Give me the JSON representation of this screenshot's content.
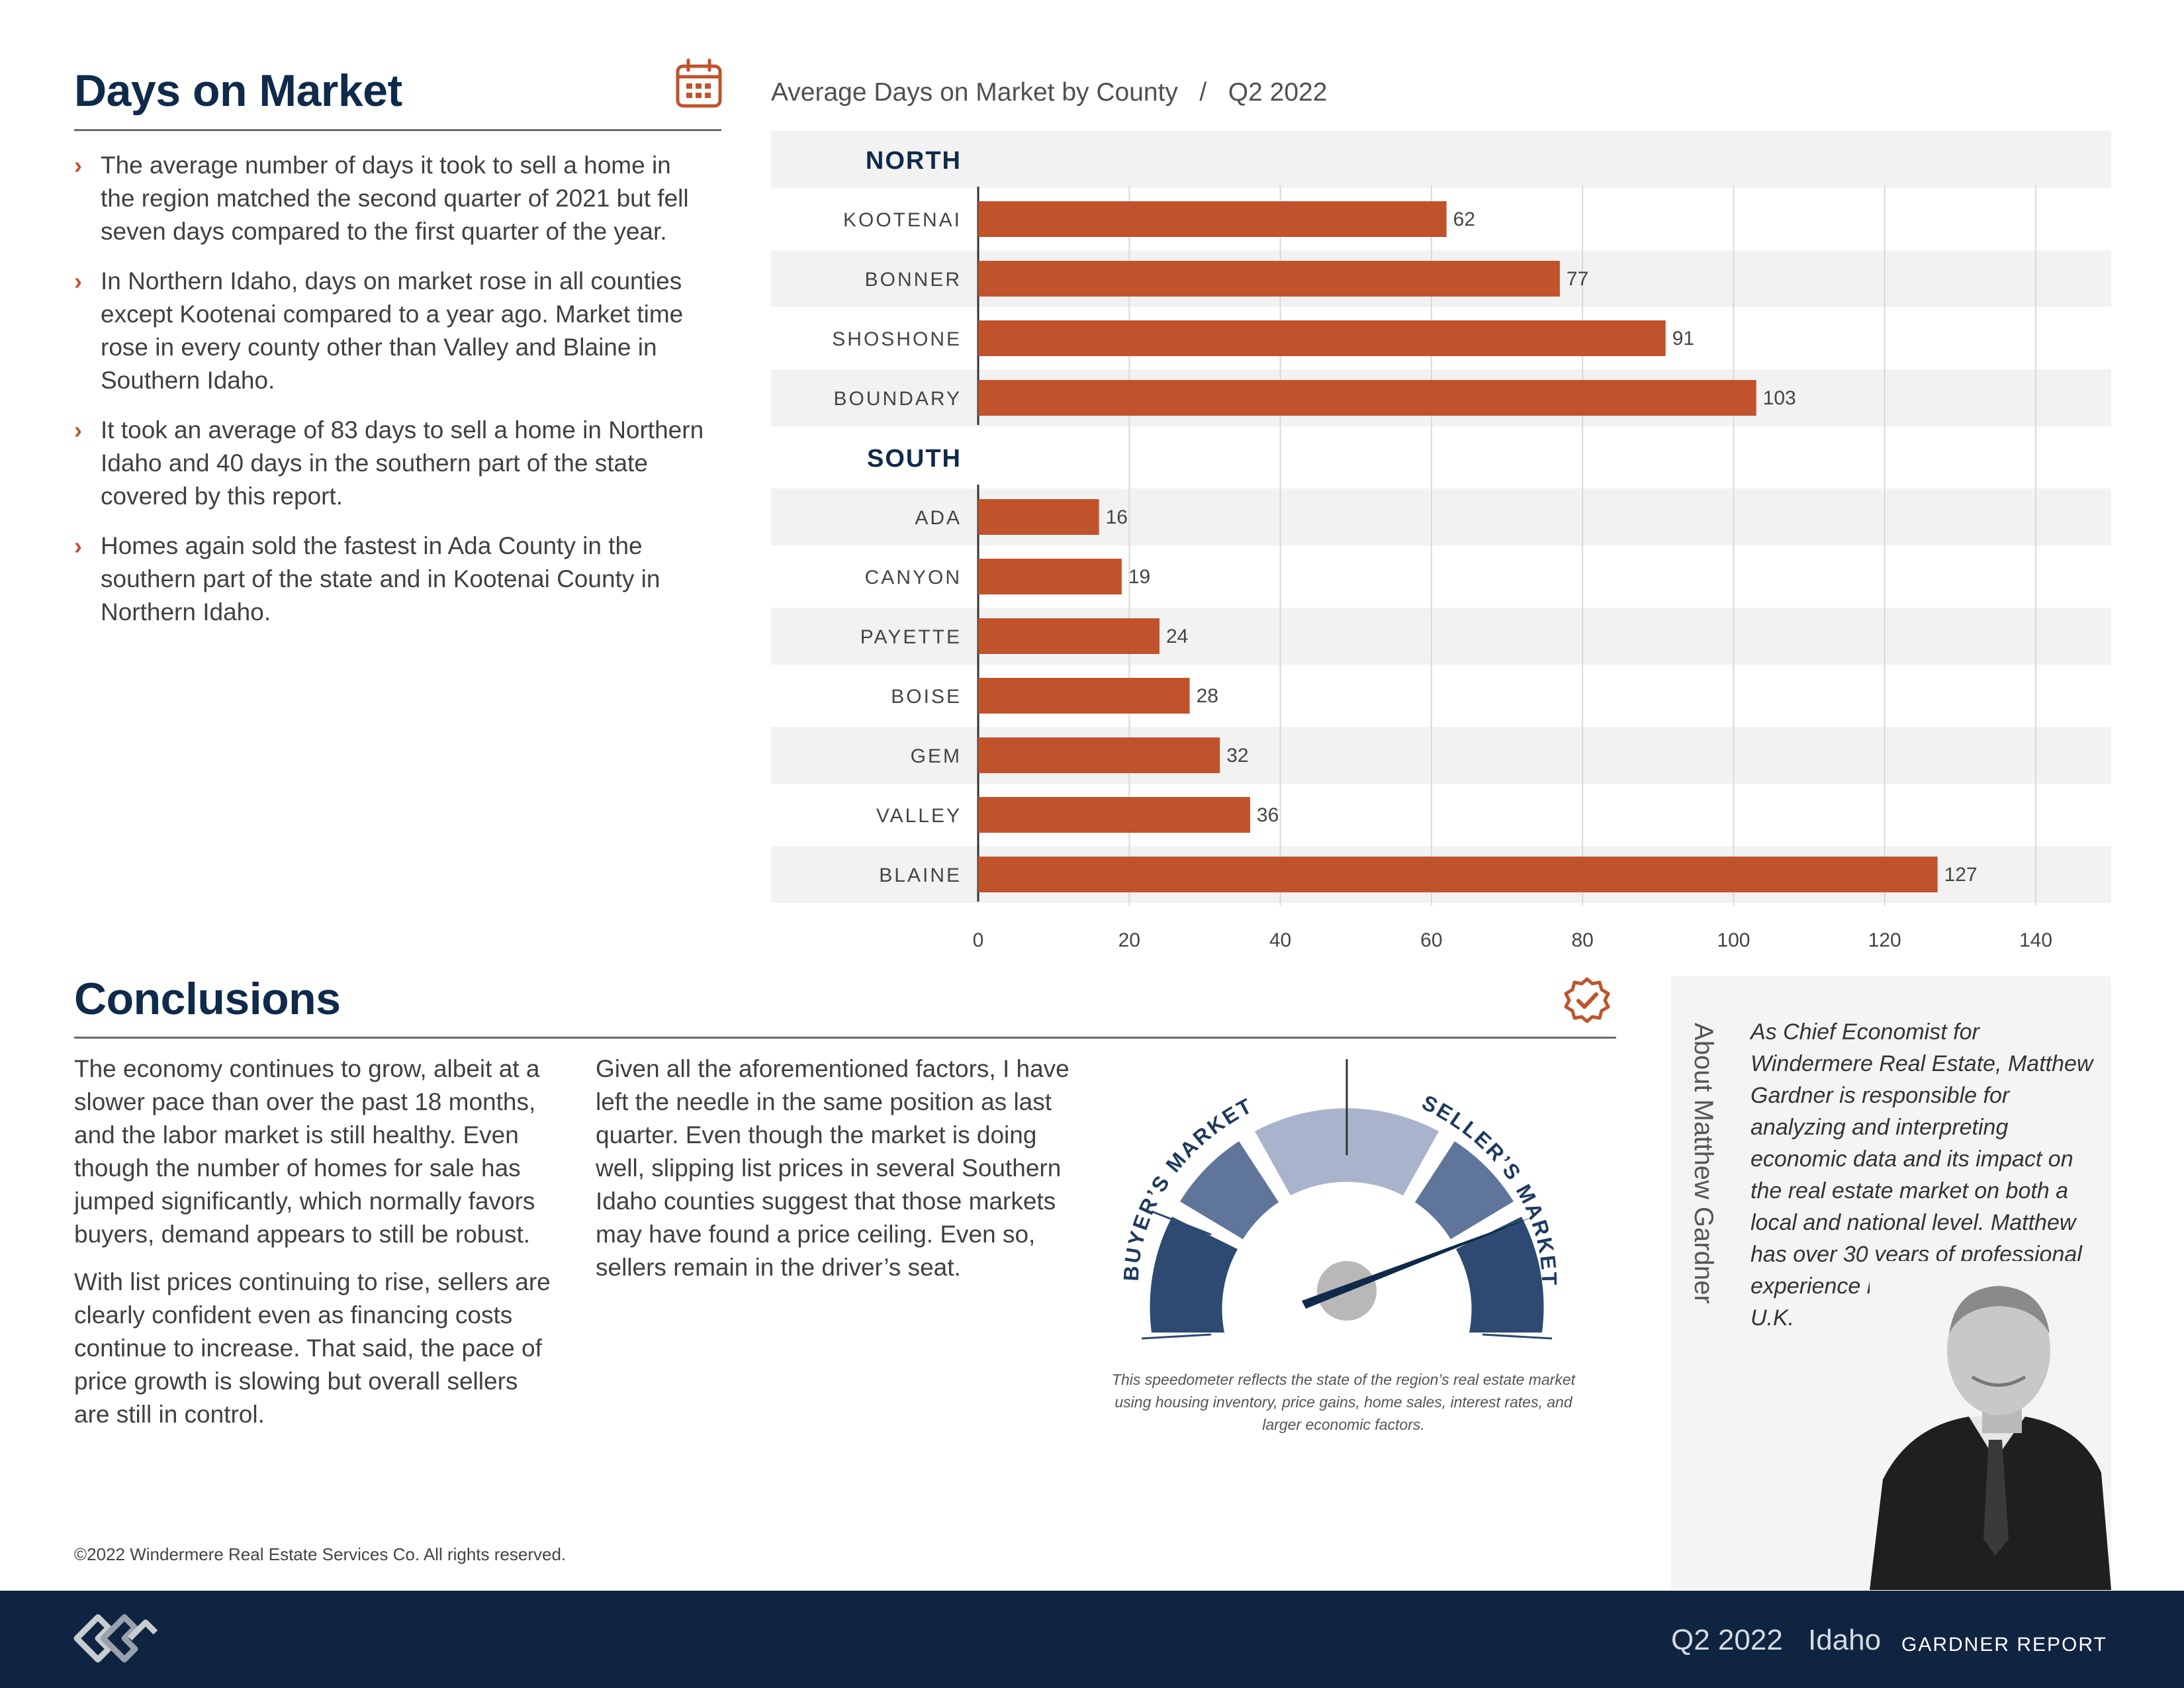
{
  "dom": {
    "title": "Days on Market",
    "bullets": [
      "The average number of days it took to sell a home in the region matched the second quarter of 2021 but fell seven days compared to the first quarter of the year.",
      "In Northern Idaho, days on market rose in all counties except Kootenai compared to a year ago. Market time rose in every county other than Valley and Blaine in Southern Idaho.",
      "It took an average of 83 days to sell a home in Northern Idaho and 40 days in the southern part of the state covered by this report.",
      "Homes again sold the fastest in Ada County in the southern part of the state and in Kootenai County in Northern Idaho."
    ]
  },
  "chart_data": {
    "type": "bar",
    "orientation": "horizontal",
    "title": "Average Days on Market by County   /   Q2 2022",
    "groups": [
      {
        "name": "NORTH",
        "categories": [
          "KOOTENAI",
          "BONNER",
          "SHOSHONE",
          "BOUNDARY"
        ],
        "values": [
          62,
          77,
          91,
          103
        ]
      },
      {
        "name": "SOUTH",
        "categories": [
          "ADA",
          "CANYON",
          "PAYETTE",
          "BOISE",
          "GEM",
          "VALLEY",
          "BLAINE"
        ],
        "values": [
          16,
          19,
          24,
          28,
          32,
          36,
          127
        ]
      }
    ],
    "xlim": [
      0,
      140
    ],
    "xticks": [
      0,
      20,
      40,
      60,
      80,
      100,
      120,
      140
    ],
    "bar_color": "#c0532c",
    "grid": true
  },
  "conclusions": {
    "title": "Conclusions",
    "col1": [
      "The economy continues to grow, albeit at a slower pace than over the past 18 months, and the labor market is still healthy. Even though the number of homes for sale has jumped significantly, which normally favors buyers, demand appears to still be robust.",
      "With list prices continuing to rise, sellers are clearly confident even as financing costs continue to increase. That said, the pace of price growth is slowing but overall sellers are still in control."
    ],
    "col2": [
      "Given all the aforementioned factors, I have left the needle in the same position as last quarter. Even though the market is doing well, slipping list prices in several Southern Idaho counties suggest that those markets may have found a price ceiling. Even so, sellers remain in the driver’s seat."
    ]
  },
  "gauge": {
    "buyers_label": "BUYER’S MARKET",
    "sellers_label": "SELLER’S MARKET",
    "caption": "This speedometer reflects the state of the region’s real estate market using housing inventory, price gains, home sales, interest rates, and larger economic factors.",
    "needle_position": 0.8,
    "colors": {
      "dark": "#2e4a72",
      "mid": "#5f7599",
      "light": "#a9b4cc",
      "needle": "#0f2a4a"
    }
  },
  "about": {
    "heading": "About Matthew Gardner",
    "text": "As Chief Economist for Windermere Real Estate, Matthew Gardner is responsible for analyzing and interpreting economic data and its impact on the real estate market on both a local and national level. Matthew has over 30 years of professional experience both in the U.S. and U.K."
  },
  "footer": {
    "copyright": "©2022 Windermere Real Estate Services Co. All rights reserved.",
    "quarter": "Q2 2022",
    "state": "Idaho",
    "report": "GARDNER REPORT"
  },
  "icons": {
    "calendar": "calendar-icon",
    "badge": "check-badge-icon",
    "logo": "windermere-logo-icon"
  },
  "colors": {
    "navy": "#0f2a4a",
    "accent": "#c0532c",
    "footer": "#0f2440"
  }
}
